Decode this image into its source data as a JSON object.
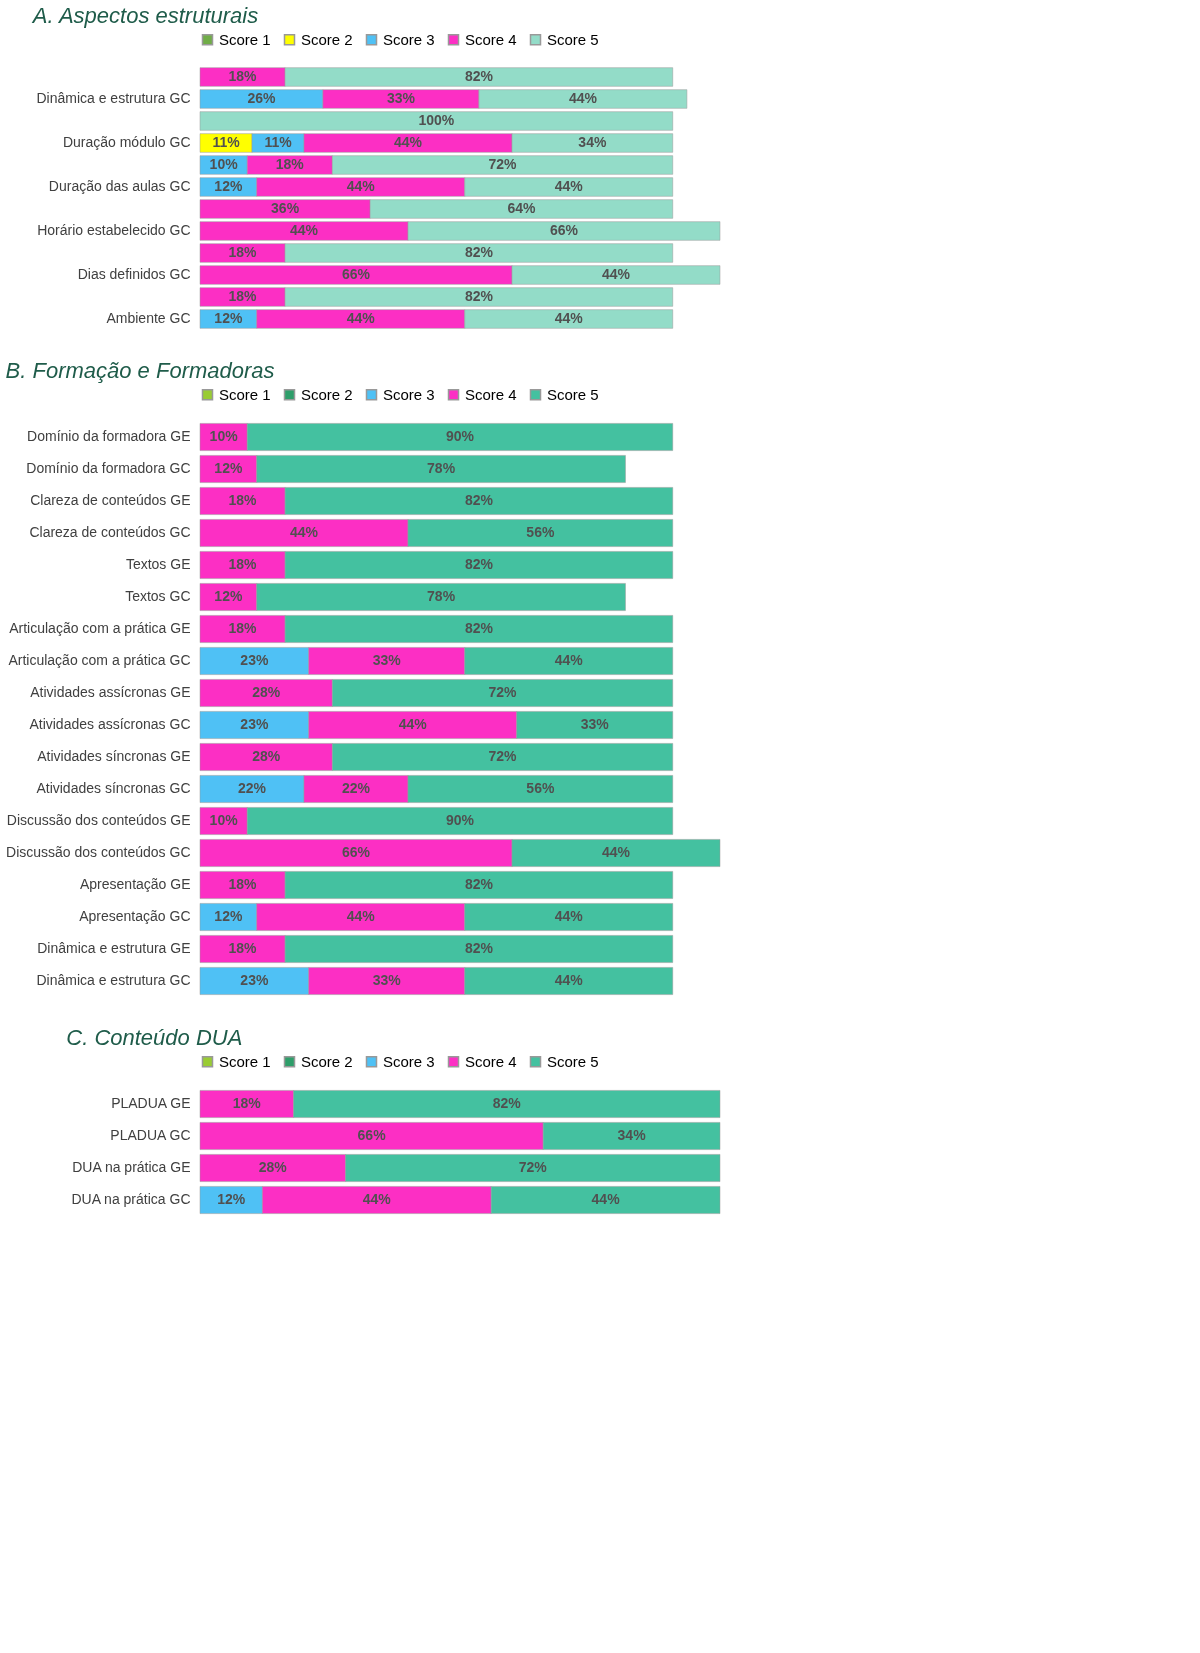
{
  "chart_data": [
    {
      "type": "bar",
      "orientation": "horizontal",
      "stacked": true,
      "title": "A. Aspectos estruturais",
      "legend": "top",
      "categories": [
        null,
        "Dinâmica e estrutura GC",
        null,
        "Duração módulo GC",
        null,
        "Duração das aulas GC",
        null,
        "Horário estabelecido  GC",
        null,
        "Dias definidos GC",
        null,
        "Ambiente  GC"
      ],
      "series": [
        {
          "name": "Score 1",
          "color": "#70ad47",
          "values": [
            null,
            null,
            null,
            null,
            null,
            null,
            null,
            null,
            null,
            null,
            null,
            null
          ],
          "value_labels": [
            null,
            null,
            null,
            null,
            null,
            null,
            null,
            null,
            null,
            null,
            null,
            null
          ]
        },
        {
          "name": "Score 2",
          "color": "#ffff00",
          "values": [
            null,
            null,
            null,
            11,
            null,
            null,
            null,
            null,
            null,
            null,
            null,
            null
          ],
          "value_labels": [
            null,
            null,
            null,
            "11%",
            null,
            null,
            null,
            null,
            null,
            null,
            null,
            null
          ]
        },
        {
          "name": "Score 3",
          "color": "#4fc1f5",
          "values": [
            null,
            26,
            null,
            11,
            10,
            12,
            null,
            null,
            null,
            null,
            null,
            12
          ],
          "value_labels": [
            null,
            "26%",
            null,
            "11%",
            "10%",
            "12%",
            null,
            null,
            null,
            null,
            null,
            "12%"
          ]
        },
        {
          "name": "Score 4",
          "color": "#fc2fc4",
          "values": [
            18,
            33,
            null,
            44,
            18,
            44,
            36,
            44,
            18,
            66,
            18,
            44
          ],
          "value_labels": [
            "18%",
            "33%",
            null,
            "44%",
            "18%",
            "44%",
            "36%",
            "44%",
            "18%",
            "66%",
            "18%",
            "44%"
          ]
        },
        {
          "name": "Score 5",
          "color": "#93dcc8",
          "values": [
            82,
            44,
            100,
            34,
            72,
            44,
            64,
            66,
            82,
            44,
            82,
            44
          ],
          "value_labels": [
            "82%",
            "44%",
            "100%",
            "34%",
            "72%",
            "44%",
            "64%",
            "66%",
            "82%",
            "44%",
            "82%",
            "44%"
          ]
        }
      ]
    },
    {
      "type": "bar",
      "orientation": "horizontal",
      "stacked": true,
      "title": "B. Formação e Formadoras",
      "legend": "top",
      "categories": [
        "Domínio da formadora GE",
        "Domínio da formadora GC",
        "Clareza de conteúdos GE",
        "Clareza de conteúdos GC",
        "Textos GE",
        "Textos GC",
        "Articulação com a prática GE",
        "Articulação com a prática GC",
        "Atividades assícronas GE",
        "Atividades assícronas GC",
        "Atividades síncronas GE",
        "Atividades síncronas GC",
        "Discussão dos conteúdos GE",
        "Discussão dos conteúdos GC",
        "Apresentação GE",
        "Apresentação GC",
        "Dinâmica e estrutura GE",
        "Dinâmica e estrutura GC"
      ],
      "series": [
        {
          "name": "Score 1",
          "color": "#99cc33",
          "values": [
            null,
            null,
            null,
            null,
            null,
            null,
            null,
            null,
            null,
            null,
            null,
            null,
            null,
            null,
            null,
            null,
            null,
            null
          ],
          "value_labels": [
            null,
            null,
            null,
            null,
            null,
            null,
            null,
            null,
            null,
            null,
            null,
            null,
            null,
            null,
            null,
            null,
            null,
            null
          ]
        },
        {
          "name": "Score 2",
          "color": "#2e9e6a",
          "values": [
            null,
            null,
            null,
            null,
            null,
            null,
            null,
            null,
            null,
            null,
            null,
            null,
            null,
            null,
            null,
            null,
            null,
            null
          ],
          "value_labels": [
            null,
            null,
            null,
            null,
            null,
            null,
            null,
            null,
            null,
            null,
            null,
            null,
            null,
            null,
            null,
            null,
            null,
            null
          ]
        },
        {
          "name": "Score 3",
          "color": "#4fc1f5",
          "values": [
            null,
            null,
            null,
            null,
            null,
            null,
            null,
            23,
            null,
            23,
            null,
            22,
            null,
            null,
            null,
            12,
            null,
            23
          ],
          "value_labels": [
            null,
            null,
            null,
            null,
            null,
            null,
            null,
            "23%",
            null,
            "23%",
            null,
            "22%",
            null,
            null,
            null,
            "12%",
            null,
            "23%"
          ]
        },
        {
          "name": "Score 4",
          "color": "#fc2fc4",
          "values": [
            10,
            12,
            18,
            44,
            18,
            12,
            18,
            33,
            28,
            44,
            28,
            22,
            10,
            66,
            18,
            44,
            18,
            33
          ],
          "value_labels": [
            "10%",
            "12%",
            "18%",
            "44%",
            "18%",
            "12%",
            "18%",
            "33%",
            "28%",
            "44%",
            "28%",
            "22%",
            "10%",
            "66%",
            "18%",
            "44%",
            "18%",
            "33%"
          ]
        },
        {
          "name": "Score 5",
          "color": "#44c1a0",
          "values": [
            90,
            78,
            82,
            56,
            82,
            78,
            82,
            44,
            72,
            33,
            72,
            56,
            90,
            44,
            82,
            44,
            82,
            44
          ],
          "value_labels": [
            "90%",
            "78%",
            "82%",
            "56%",
            "82%",
            "78%",
            "82%",
            "44%",
            "72%",
            "33%",
            "72%",
            "56%",
            "90%",
            "44%",
            "82%",
            "44%",
            "82%",
            "44%"
          ]
        }
      ]
    },
    {
      "type": "bar",
      "orientation": "horizontal",
      "stacked": true,
      "title": "C. Conteúdo DUA",
      "legend": "top",
      "categories": [
        "PLADUA GE",
        "PLADUA GC",
        "DUA na prática  GE",
        "DUA na prática  GC"
      ],
      "series": [
        {
          "name": "Score 1",
          "color": "#99cc33",
          "values": [
            null,
            null,
            null,
            null
          ],
          "value_labels": [
            null,
            null,
            null,
            null
          ]
        },
        {
          "name": "Score 2",
          "color": "#2e9e6a",
          "values": [
            null,
            null,
            null,
            null
          ],
          "value_labels": [
            null,
            null,
            null,
            null
          ]
        },
        {
          "name": "Score 3",
          "color": "#4fc1f5",
          "values": [
            null,
            null,
            null,
            12
          ],
          "value_labels": [
            null,
            null,
            null,
            "12%"
          ]
        },
        {
          "name": "Score 4",
          "color": "#fc2fc4",
          "values": [
            18,
            66,
            28,
            44
          ],
          "value_labels": [
            "18%",
            "66%",
            "28%",
            "44%"
          ]
        },
        {
          "name": "Score 5",
          "color": "#44c1a0",
          "values": [
            82,
            34,
            72,
            44
          ],
          "value_labels": [
            "82%",
            "34%",
            "72%",
            "44%"
          ]
        }
      ]
    }
  ]
}
